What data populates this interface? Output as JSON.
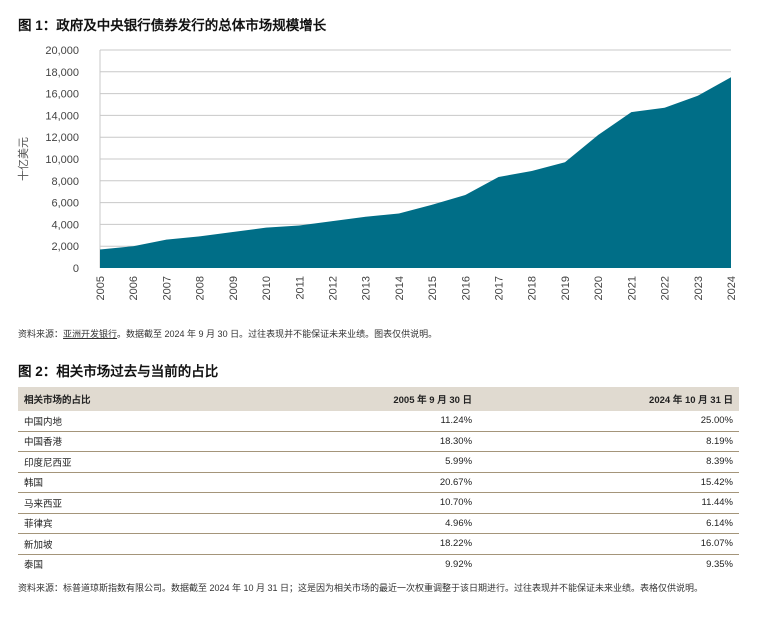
{
  "figure1": {
    "title": "图 1：政府及中央银行债券发行的总体市场规模增长",
    "source_prefix": "资料来源：",
    "source_link": "亚洲开发银行",
    "source_suffix": "。数据截至 2024 年 9 月 30 日。过往表现并不能保证未来业绩。图表仅供说明。"
  },
  "chart_data": {
    "type": "area",
    "title": "图 1：政府及中央银行债券发行的总体市场规模增长",
    "xlabel": "",
    "ylabel": "十亿美元",
    "x": [
      "2005",
      "2006",
      "2007",
      "2008",
      "2009",
      "2010",
      "2011",
      "2012",
      "2013",
      "2014",
      "2015",
      "2016",
      "2017",
      "2018",
      "2019",
      "2020",
      "2021",
      "2022",
      "2023",
      "2024"
    ],
    "values": [
      1700,
      2000,
      2600,
      2900,
      3300,
      3700,
      3900,
      4300,
      4700,
      5000,
      5800,
      6700,
      8350,
      8900,
      9700,
      12200,
      14300,
      14700,
      15800,
      17500
    ],
    "ylim": [
      0,
      20000
    ],
    "yticks": [
      "0",
      "2,000",
      "4,000",
      "6,000",
      "8,000",
      "10,000",
      "12,000",
      "14,000",
      "16,000",
      "18,000",
      "20,000"
    ],
    "grid": true,
    "color": "#006e87"
  },
  "figure2": {
    "title": "图 2：相关市场过去与当前的占比",
    "headers": [
      "相关市场的占比",
      "2005 年 9 月 30 日",
      "2024 年 10 月 31 日"
    ],
    "rows": [
      [
        "中国内地",
        "11.24%",
        "25.00%"
      ],
      [
        "中国香港",
        "18.30%",
        "8.19%"
      ],
      [
        "印度尼西亚",
        "5.99%",
        "8.39%"
      ],
      [
        "韩国",
        "20.67%",
        "15.42%"
      ],
      [
        "马来西亚",
        "10.70%",
        "11.44%"
      ],
      [
        "菲律宾",
        "4.96%",
        "6.14%"
      ],
      [
        "新加坡",
        "18.22%",
        "16.07%"
      ],
      [
        "泰国",
        "9.92%",
        "9.35%"
      ]
    ],
    "source": "资料来源：标普道琼斯指数有限公司。数据截至 2024 年 10 月 31 日；这是因为相关市场的最近一次权重调整于该日期进行。过往表现并不能保证未来业绩。表格仅供说明。"
  }
}
